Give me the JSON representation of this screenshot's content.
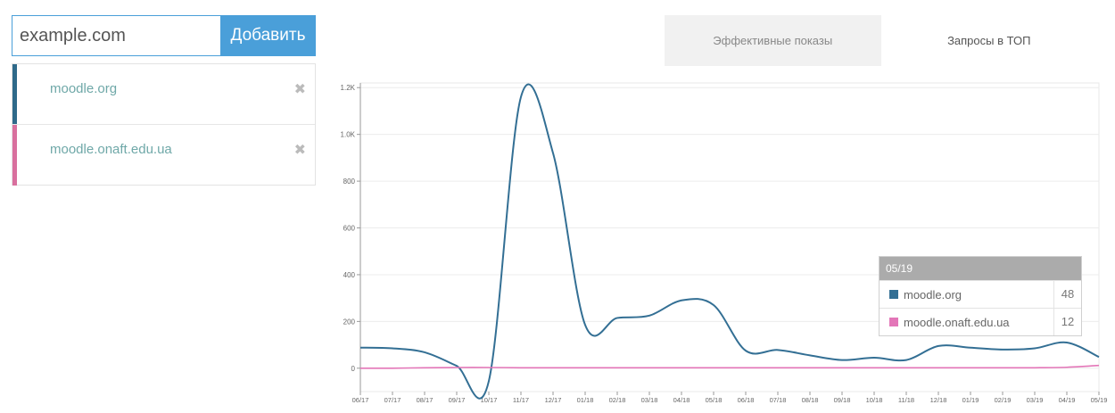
{
  "add_form": {
    "input_value": "example.com",
    "button_label": "Добавить"
  },
  "sites": [
    {
      "name": "moodle.org",
      "color": "#2f6a8a",
      "remove_icon": "✖"
    },
    {
      "name": "moodle.onaft.edu.ua",
      "color": "#d9709e",
      "remove_icon": "✖"
    }
  ],
  "tabs": [
    {
      "label": "Эффективные показы",
      "active": true
    },
    {
      "label": "Запросы в ТОП",
      "active": false
    }
  ],
  "chart_data": {
    "type": "line",
    "x": [
      "06/17",
      "07/17",
      "08/17",
      "09/17",
      "10/17",
      "11/17",
      "12/17",
      "01/18",
      "02/18",
      "03/18",
      "04/18",
      "05/18",
      "06/18",
      "07/18",
      "08/18",
      "09/18",
      "10/18",
      "11/18",
      "12/18",
      "01/19",
      "02/19",
      "03/19",
      "04/19",
      "05/19"
    ],
    "y_ticks": [
      "0",
      "200",
      "400",
      "600",
      "800",
      "1.0K",
      "1.2K"
    ],
    "y_tick_values": [
      0,
      200,
      400,
      600,
      800,
      1000,
      1200
    ],
    "ylim": [
      -100,
      1220
    ],
    "grid": true,
    "series": [
      {
        "name": "moodle.org",
        "color": "#336f94",
        "values": [
          88,
          85,
          68,
          10,
          -55,
          1160,
          920,
          185,
          215,
          225,
          290,
          270,
          75,
          78,
          55,
          35,
          45,
          35,
          95,
          88,
          80,
          85,
          110,
          48
        ]
      },
      {
        "name": "moodle.onaft.edu.ua",
        "color": "#e376b8",
        "values": [
          0,
          0,
          2,
          3,
          3,
          2,
          2,
          2,
          2,
          2,
          2,
          2,
          2,
          2,
          2,
          2,
          2,
          2,
          2,
          2,
          2,
          2,
          4,
          12
        ]
      }
    ]
  },
  "tooltip": {
    "title": "05/19",
    "rows": [
      {
        "name": "moodle.org",
        "value": "48",
        "color": "#336f94"
      },
      {
        "name": "moodle.onaft.edu.ua",
        "value": "12",
        "color": "#e376b8"
      }
    ]
  }
}
